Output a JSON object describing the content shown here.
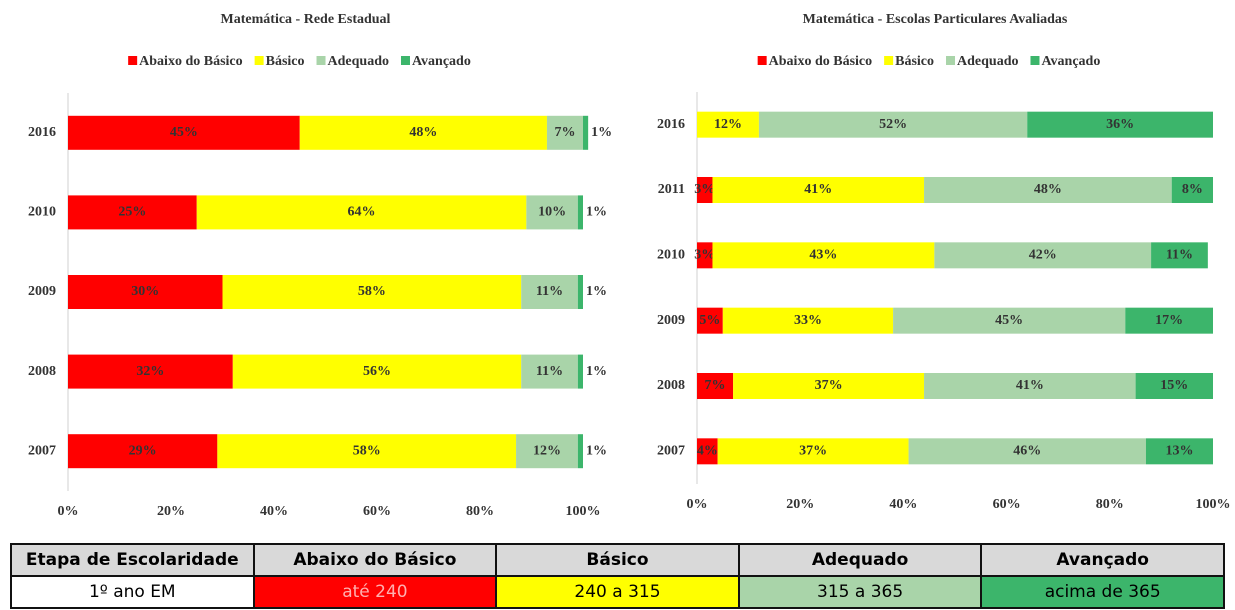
{
  "chart_data": [
    {
      "type": "bar",
      "orientation": "horizontal",
      "stacked": true,
      "title": "Matemática - Rede Estadual",
      "categories": [
        "2016",
        "2010",
        "2009",
        "2008",
        "2007"
      ],
      "series": [
        {
          "name": "Abaixo do Básico",
          "color": "#ff0000",
          "values": [
            45,
            25,
            30,
            32,
            29
          ],
          "value_labels": [
            "45%",
            "25%",
            "30%",
            "32%",
            "29%"
          ]
        },
        {
          "name": "Básico",
          "color": "#ffff00",
          "values": [
            48,
            64,
            58,
            56,
            58
          ],
          "value_labels": [
            "48%",
            "64%",
            "58%",
            "56%",
            "58%"
          ]
        },
        {
          "name": "Adequado",
          "color": "#a9d4a9",
          "values": [
            7,
            10,
            11,
            11,
            12
          ],
          "value_labels": [
            "7%",
            "10%",
            "11%",
            "11%",
            "12%"
          ]
        },
        {
          "name": "Avançado",
          "color": "#3cb56b",
          "values": [
            1,
            1,
            1,
            1,
            1
          ],
          "value_labels": [
            "1%",
            "1%",
            "1%",
            "1%",
            "1%"
          ]
        }
      ],
      "xlim": [
        0,
        100
      ],
      "xticks": [
        {
          "value": 0,
          "label": "0%"
        },
        {
          "value": 20,
          "label": "20%"
        },
        {
          "value": 40,
          "label": "40%"
        },
        {
          "value": 60,
          "label": "60%"
        },
        {
          "value": 80,
          "label": "80%"
        },
        {
          "value": 100,
          "label": "100%"
        }
      ],
      "legend": "top"
    },
    {
      "type": "bar",
      "orientation": "horizontal",
      "stacked": true,
      "title": "Matemática - Escolas Particulares Avaliadas",
      "categories": [
        "2016",
        "2011",
        "2010",
        "2009",
        "2008",
        "2007"
      ],
      "series": [
        {
          "name": "Abaixo do Básico",
          "color": "#ff0000",
          "values": [
            null,
            3,
            3,
            5,
            7,
            4
          ],
          "value_labels": [
            null,
            "3%",
            "3%",
            "5%",
            "7%",
            "4%"
          ]
        },
        {
          "name": "Básico",
          "color": "#ffff00",
          "values": [
            12,
            41,
            43,
            33,
            37,
            37
          ],
          "value_labels": [
            "12%",
            "41%",
            "43%",
            "33%",
            "37%",
            "37%"
          ]
        },
        {
          "name": "Adequado",
          "color": "#a9d4a9",
          "values": [
            52,
            48,
            42,
            45,
            41,
            46
          ],
          "value_labels": [
            "52%",
            "48%",
            "42%",
            "45%",
            "41%",
            "46%"
          ]
        },
        {
          "name": "Avançado",
          "color": "#3cb56b",
          "values": [
            36,
            8,
            11,
            17,
            15,
            13
          ],
          "value_labels": [
            "36%",
            "8%",
            "11%",
            "17%",
            "15%",
            "13%"
          ]
        }
      ],
      "xlim": [
        0,
        100
      ],
      "xticks": [
        {
          "value": 0,
          "label": "0%"
        },
        {
          "value": 20,
          "label": "20%"
        },
        {
          "value": 40,
          "label": "40%"
        },
        {
          "value": 60,
          "label": "60%"
        },
        {
          "value": 80,
          "label": "80%"
        },
        {
          "value": 100,
          "label": "100%"
        }
      ],
      "legend": "top"
    }
  ],
  "table": {
    "header": [
      "Etapa de Escolaridade",
      "Abaixo do Básico",
      "Básico",
      "Adequado",
      "Avançado"
    ],
    "rows": [
      [
        "1º ano EM",
        "até 240",
        "240 a 315",
        "315 a 365",
        "acima de 365"
      ]
    ]
  }
}
